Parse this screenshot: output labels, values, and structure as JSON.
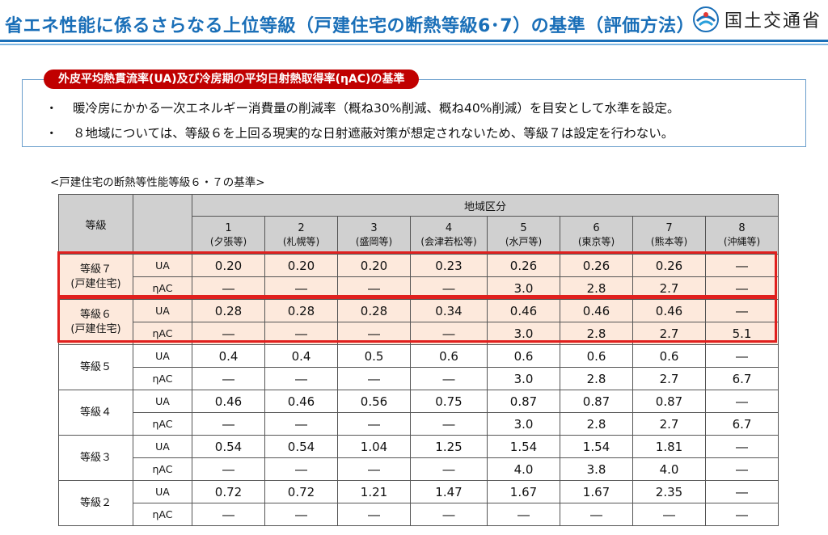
{
  "header": {
    "title": "省エネ性能に係るさらなる上位等級（戸建住宅の断熱等級6･7）の基準（評価方法）",
    "ministry": "国土交通省",
    "logo_icon": "mlit-logo-icon",
    "accent_color": "#1a6fb8"
  },
  "criteria": {
    "tab_label": "外皮平均熱貫流率(UA)及び冷房期の平均日射熱取得率(ηAC)の基準",
    "tab_color": "#c00000",
    "bullets": [
      "暖冷房にかかる一次エネルギー消費量の削減率（概ね30%削減、概ね40%削減）を目安として水準を設定。",
      "８地域については、等級６を上回る現実的な日射遮蔽対策が想定されないため、等級７は設定を行わない。"
    ],
    "bullet_mark": "・"
  },
  "caption": "<戸建住宅の断熱等性能等級６・７の基準>",
  "table": {
    "header_grade": "等級",
    "header_region": "地域区分",
    "regions": [
      {
        "num": "1",
        "city": "(夕張等)"
      },
      {
        "num": "2",
        "city": "(札幌等)"
      },
      {
        "num": "3",
        "city": "(盛岡等)"
      },
      {
        "num": "4",
        "city": "(会津若松等)"
      },
      {
        "num": "5",
        "city": "(水戸等)"
      },
      {
        "num": "6",
        "city": "(東京等)"
      },
      {
        "num": "7",
        "city": "(熊本等)"
      },
      {
        "num": "8",
        "city": "(沖縄等)"
      }
    ],
    "grades": [
      {
        "name": "等級７",
        "note": "(戸建住宅)",
        "highlight": true,
        "ua_label": "UA",
        "ua": [
          "0.20",
          "0.20",
          "0.20",
          "0.23",
          "0.26",
          "0.26",
          "0.26",
          "―"
        ],
        "nac_label": "ηAC",
        "nac": [
          "―",
          "―",
          "―",
          "―",
          "3.0",
          "2.8",
          "2.7",
          "―"
        ]
      },
      {
        "name": "等級６",
        "note": "(戸建住宅)",
        "highlight": true,
        "ua_label": "UA",
        "ua": [
          "0.28",
          "0.28",
          "0.28",
          "0.34",
          "0.46",
          "0.46",
          "0.46",
          "―"
        ],
        "nac_label": "ηAC",
        "nac": [
          "―",
          "―",
          "―",
          "―",
          "3.0",
          "2.8",
          "2.7",
          "5.1"
        ]
      },
      {
        "name": "等級５",
        "note": "",
        "highlight": false,
        "ua_label": "UA",
        "ua": [
          "0.4",
          "0.4",
          "0.5",
          "0.6",
          "0.6",
          "0.6",
          "0.6",
          "―"
        ],
        "nac_label": "ηAC",
        "nac": [
          "―",
          "―",
          "―",
          "―",
          "3.0",
          "2.8",
          "2.7",
          "6.7"
        ]
      },
      {
        "name": "等級４",
        "note": "",
        "highlight": false,
        "ua_label": "UA",
        "ua": [
          "0.46",
          "0.46",
          "0.56",
          "0.75",
          "0.87",
          "0.87",
          "0.87",
          "―"
        ],
        "nac_label": "ηAC",
        "nac": [
          "―",
          "―",
          "―",
          "―",
          "3.0",
          "2.8",
          "2.7",
          "6.7"
        ]
      },
      {
        "name": "等級３",
        "note": "",
        "highlight": false,
        "ua_label": "UA",
        "ua": [
          "0.54",
          "0.54",
          "1.04",
          "1.25",
          "1.54",
          "1.54",
          "1.81",
          "―"
        ],
        "nac_label": "ηAC",
        "nac": [
          "―",
          "―",
          "―",
          "―",
          "4.0",
          "3.8",
          "4.0",
          "―"
        ]
      },
      {
        "name": "等級２",
        "note": "",
        "highlight": false,
        "ua_label": "UA",
        "ua": [
          "0.72",
          "0.72",
          "1.21",
          "1.47",
          "1.67",
          "1.67",
          "2.35",
          "―"
        ],
        "nac_label": "ηAC",
        "nac": [
          "―",
          "―",
          "―",
          "―",
          "―",
          "―",
          "―",
          "―"
        ]
      }
    ],
    "highlight_color": "#e0201e",
    "highlight_fill": "#fde9dc",
    "header_fill": "#d0d0d0"
  }
}
